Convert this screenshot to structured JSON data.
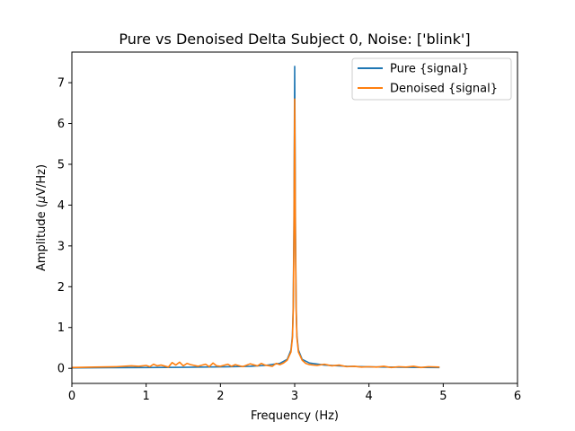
{
  "chart_data": {
    "type": "line",
    "title": "Pure vs Denoised Delta Subject 0, Noise: ['blink']",
    "xlabel": "Frequency (Hz)",
    "ylabel_prefix": "Amplitude (",
    "ylabel_mu": "μ",
    "ylabel_suffix": "V/Hz)",
    "xlim": [
      0,
      6
    ],
    "ylim": [
      -0.37,
      7.75
    ],
    "xticks": [
      0,
      1,
      2,
      3,
      4,
      5,
      6
    ],
    "yticks": [
      0,
      1,
      2,
      3,
      4,
      5,
      6,
      7
    ],
    "legend_position": "top-right",
    "series": [
      {
        "name": "Pure {signal}",
        "color": "#1f77b4",
        "x": [
          0,
          0.5,
          1.0,
          1.5,
          2.0,
          2.4,
          2.6,
          2.8,
          2.9,
          2.95,
          2.97,
          2.98,
          2.99,
          3.0,
          3.01,
          3.02,
          3.03,
          3.05,
          3.1,
          3.2,
          3.4,
          3.7,
          4.0,
          4.5,
          4.95
        ],
        "y": [
          0.01,
          0.015,
          0.02,
          0.025,
          0.035,
          0.05,
          0.07,
          0.12,
          0.22,
          0.45,
          0.8,
          1.5,
          3.5,
          7.4,
          3.5,
          1.5,
          0.8,
          0.45,
          0.22,
          0.13,
          0.08,
          0.05,
          0.035,
          0.025,
          0.02
        ]
      },
      {
        "name": "Denoised {signal}",
        "color": "#ff7f0e",
        "x": [
          0,
          0.3,
          0.6,
          0.8,
          0.9,
          1.0,
          1.05,
          1.1,
          1.15,
          1.2,
          1.3,
          1.35,
          1.4,
          1.45,
          1.5,
          1.55,
          1.6,
          1.7,
          1.8,
          1.85,
          1.9,
          1.95,
          2.0,
          2.1,
          2.15,
          2.2,
          2.3,
          2.4,
          2.5,
          2.55,
          2.6,
          2.7,
          2.75,
          2.8,
          2.85,
          2.9,
          2.95,
          2.97,
          2.98,
          2.99,
          3.0,
          3.01,
          3.02,
          3.03,
          3.05,
          3.1,
          3.15,
          3.2,
          3.3,
          3.4,
          3.5,
          3.6,
          3.7,
          3.8,
          3.9,
          4.0,
          4.1,
          4.2,
          4.3,
          4.4,
          4.5,
          4.6,
          4.7,
          4.8,
          4.95
        ],
        "y": [
          0.02,
          0.03,
          0.04,
          0.06,
          0.05,
          0.07,
          0.04,
          0.1,
          0.06,
          0.08,
          0.03,
          0.14,
          0.08,
          0.15,
          0.06,
          0.12,
          0.09,
          0.05,
          0.1,
          0.04,
          0.13,
          0.06,
          0.05,
          0.1,
          0.05,
          0.09,
          0.04,
          0.11,
          0.06,
          0.12,
          0.08,
          0.05,
          0.12,
          0.09,
          0.13,
          0.2,
          0.4,
          0.75,
          1.4,
          3.2,
          6.6,
          3.2,
          1.4,
          0.75,
          0.4,
          0.2,
          0.12,
          0.09,
          0.07,
          0.1,
          0.06,
          0.08,
          0.04,
          0.05,
          0.03,
          0.04,
          0.03,
          0.05,
          0.02,
          0.04,
          0.03,
          0.05,
          0.02,
          0.04,
          0.03
        ]
      }
    ]
  }
}
